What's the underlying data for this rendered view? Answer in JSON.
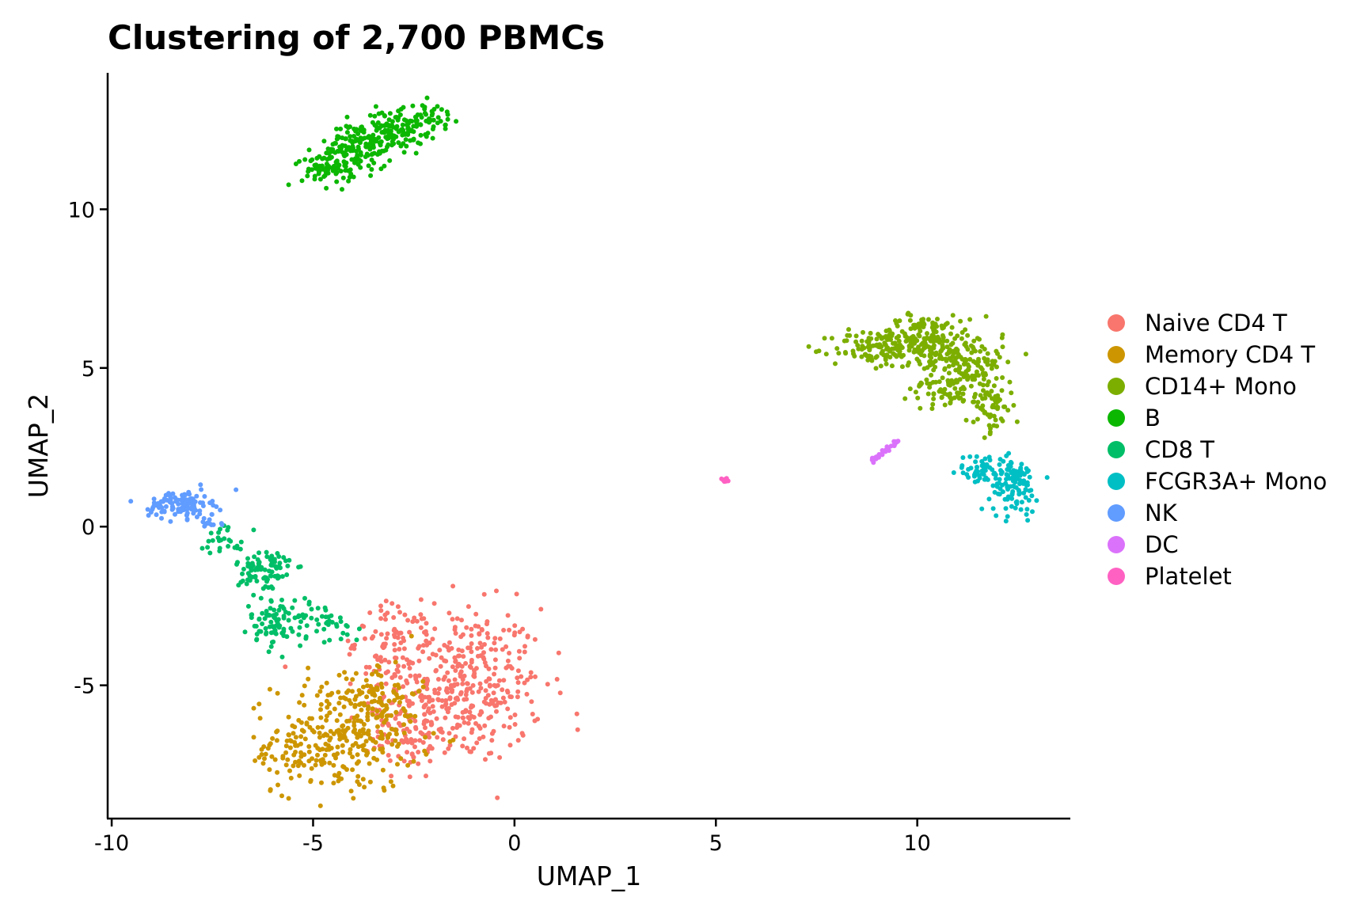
{
  "chart_data": {
    "type": "scatter",
    "title": "Clustering of 2,700 PBMCs",
    "xlabel": "UMAP_1",
    "ylabel": "UMAP_2",
    "xlim": [
      -10.1,
      13.8
    ],
    "ylim": [
      -9.2,
      14.3
    ],
    "xticks": [
      -10,
      -5,
      0,
      5,
      10
    ],
    "xtick_labels": [
      "-10",
      "-5",
      "0",
      "5",
      "10"
    ],
    "yticks": [
      -5,
      0,
      5,
      10
    ],
    "ytick_labels": [
      "-5",
      "0",
      "5",
      "10"
    ],
    "grid": false,
    "legend_position": "right",
    "clusters": [
      {
        "name": "Naive CD4 T",
        "color": "#F8766D",
        "blobs": [
          {
            "cx": -1.4,
            "cy": -5.0,
            "sx": 1.25,
            "sy": 1.45,
            "n": 420
          },
          {
            "cx": -3.0,
            "cy": -3.6,
            "sx": 0.55,
            "sy": 0.7,
            "n": 70
          },
          {
            "cx": -2.6,
            "cy": -6.6,
            "sx": 0.6,
            "sy": 0.55,
            "n": 70
          }
        ]
      },
      {
        "name": "Memory CD4 T",
        "color": "#CD9600",
        "blobs": [
          {
            "cx": -4.2,
            "cy": -6.6,
            "sx": 1.05,
            "sy": 1.05,
            "n": 280
          },
          {
            "cx": -3.4,
            "cy": -5.2,
            "sx": 0.6,
            "sy": 0.6,
            "n": 60
          },
          {
            "cx": -5.6,
            "cy": -7.2,
            "sx": 0.45,
            "sy": 0.5,
            "n": 40
          }
        ]
      },
      {
        "name": "CD14+ Mono",
        "color": "#7CAE00",
        "blobs": [
          {
            "cx": 8.9,
            "cy": 5.6,
            "sx": 0.6,
            "sy": 0.35,
            "n": 90
          },
          {
            "cx": 10.1,
            "cy": 5.9,
            "sx": 0.65,
            "sy": 0.45,
            "n": 170
          },
          {
            "cx": 11.2,
            "cy": 5.2,
            "sx": 0.55,
            "sy": 0.65,
            "n": 150
          },
          {
            "cx": 11.8,
            "cy": 3.9,
            "sx": 0.35,
            "sy": 0.55,
            "n": 70
          },
          {
            "cx": 10.6,
            "cy": 4.4,
            "sx": 0.45,
            "sy": 0.45,
            "n": 50
          }
        ]
      },
      {
        "name": "B",
        "color": "#0CB702",
        "blobs": [
          {
            "cx": -4.6,
            "cy": 11.4,
            "sx": 0.4,
            "sy": 0.4,
            "n": 90
          },
          {
            "cx": -3.8,
            "cy": 12.0,
            "sx": 0.45,
            "sy": 0.45,
            "n": 120
          },
          {
            "cx": -3.0,
            "cy": 12.5,
            "sx": 0.45,
            "sy": 0.35,
            "n": 100
          },
          {
            "cx": -2.2,
            "cy": 12.9,
            "sx": 0.4,
            "sy": 0.25,
            "n": 50
          }
        ]
      },
      {
        "name": "CD8 T",
        "color": "#00BE67",
        "blobs": [
          {
            "cx": -6.2,
            "cy": -1.4,
            "sx": 0.4,
            "sy": 0.5,
            "n": 90
          },
          {
            "cx": -5.8,
            "cy": -3.0,
            "sx": 0.45,
            "sy": 0.45,
            "n": 90
          },
          {
            "cx": -7.2,
            "cy": -0.4,
            "sx": 0.35,
            "sy": 0.3,
            "n": 25
          },
          {
            "cx": -4.6,
            "cy": -3.0,
            "sx": 0.45,
            "sy": 0.4,
            "n": 30
          }
        ]
      },
      {
        "name": "FCGR3A+ Mono",
        "color": "#00BFC4",
        "blobs": [
          {
            "cx": 12.4,
            "cy": 1.3,
            "sx": 0.35,
            "sy": 0.5,
            "n": 110
          },
          {
            "cx": 11.6,
            "cy": 1.8,
            "sx": 0.35,
            "sy": 0.3,
            "n": 50
          }
        ]
      },
      {
        "name": "NK",
        "color": "#619CFF",
        "blobs": [
          {
            "cx": -8.3,
            "cy": 0.7,
            "sx": 0.45,
            "sy": 0.25,
            "n": 110
          },
          {
            "cx": -7.6,
            "cy": 0.2,
            "sx": 0.2,
            "sy": 0.2,
            "n": 15
          }
        ]
      },
      {
        "name": "DC",
        "color": "#DB72FB",
        "line": {
          "x0": 8.9,
          "y0": 2.05,
          "x1": 9.6,
          "y1": 2.8,
          "n": 32
        }
      },
      {
        "name": "Platelet",
        "color": "#FF61C3",
        "blobs": [
          {
            "cx": 5.25,
            "cy": 1.45,
            "sx": 0.06,
            "sy": 0.04,
            "n": 14
          }
        ]
      }
    ]
  }
}
